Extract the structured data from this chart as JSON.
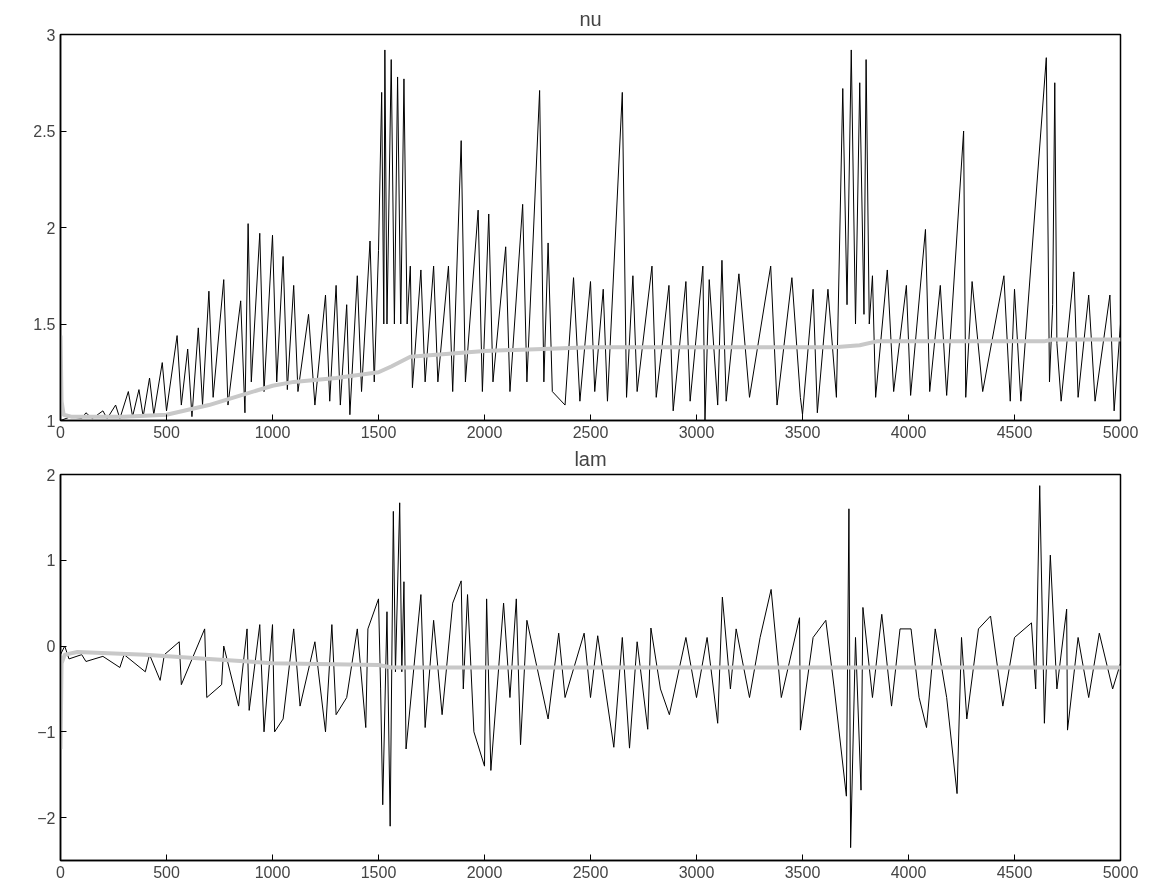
{
  "chart_data": [
    {
      "type": "line",
      "title": "nu",
      "xlim": [
        0,
        5000
      ],
      "ylim": [
        1,
        3
      ],
      "xticks": [
        0,
        500,
        1000,
        1500,
        2000,
        2500,
        3000,
        3500,
        4000,
        4500,
        5000
      ],
      "yticks": [
        1,
        1.5,
        2,
        2.5,
        3
      ],
      "series": [
        {
          "color": "#000000",
          "x": [
            0,
            50,
            100,
            120,
            150,
            200,
            220,
            260,
            280,
            320,
            340,
            370,
            390,
            420,
            440,
            480,
            500,
            550,
            570,
            600,
            620,
            650,
            670,
            700,
            720,
            770,
            790,
            850,
            870,
            885,
            900,
            940,
            960,
            1000,
            1020,
            1050,
            1070,
            1100,
            1120,
            1170,
            1200,
            1250,
            1270,
            1300,
            1320,
            1350,
            1365,
            1400,
            1420,
            1460,
            1480,
            1500,
            1515,
            1525,
            1530,
            1540,
            1560,
            1575,
            1590,
            1605,
            1620,
            1635,
            1650,
            1660,
            1700,
            1720,
            1760,
            1780,
            1830,
            1850,
            1890,
            1910,
            1970,
            1990,
            2020,
            2040,
            2100,
            2120,
            2180,
            2200,
            2260,
            2280,
            2300,
            2320,
            2380,
            2420,
            2450,
            2500,
            2520,
            2560,
            2580,
            2650,
            2670,
            2700,
            2720,
            2790,
            2810,
            2870,
            2890,
            2950,
            2970,
            3030,
            3040,
            3060,
            3100,
            3120,
            3140,
            3200,
            3250,
            3350,
            3380,
            3450,
            3490,
            3500,
            3550,
            3570,
            3620,
            3660,
            3690,
            3710,
            3730,
            3750,
            3770,
            3790,
            3800,
            3815,
            3830,
            3845,
            3900,
            3930,
            3990,
            4010,
            4080,
            4100,
            4150,
            4180,
            4260,
            4270,
            4300,
            4350,
            4450,
            4480,
            4500,
            4530,
            4650,
            4665,
            4680,
            4690,
            4700,
            4720,
            4780,
            4800,
            4850,
            4880,
            4950,
            4970,
            5000
          ],
          "values": [
            1.0,
            1.02,
            1.01,
            1.04,
            1.01,
            1.05,
            1.01,
            1.08,
            1.01,
            1.15,
            1.02,
            1.16,
            1.02,
            1.22,
            1.03,
            1.3,
            1.05,
            1.44,
            1.08,
            1.37,
            1.02,
            1.48,
            1.08,
            1.67,
            1.12,
            1.73,
            1.08,
            1.62,
            1.04,
            2.02,
            1.2,
            1.97,
            1.15,
            1.96,
            1.2,
            1.85,
            1.16,
            1.7,
            1.15,
            1.55,
            1.08,
            1.65,
            1.1,
            1.7,
            1.08,
            1.6,
            1.03,
            1.75,
            1.15,
            1.93,
            1.2,
            1.88,
            2.7,
            1.5,
            2.92,
            1.5,
            2.87,
            1.5,
            2.78,
            1.5,
            2.77,
            1.5,
            1.8,
            1.17,
            1.78,
            1.2,
            1.8,
            1.2,
            1.8,
            1.15,
            2.45,
            1.2,
            2.09,
            1.15,
            2.07,
            1.2,
            1.9,
            1.15,
            2.12,
            1.2,
            2.71,
            1.2,
            1.92,
            1.15,
            1.08,
            1.74,
            1.1,
            1.72,
            1.15,
            1.68,
            1.1,
            2.7,
            1.12,
            1.75,
            1.15,
            1.8,
            1.12,
            1.7,
            1.05,
            1.72,
            1.1,
            1.8,
            1.0,
            1.73,
            1.08,
            1.83,
            1.1,
            1.76,
            1.12,
            1.8,
            1.08,
            1.74,
            1.12,
            1.03,
            1.68,
            1.04,
            1.68,
            1.12,
            2.72,
            1.6,
            2.92,
            1.5,
            2.75,
            1.55,
            2.87,
            1.5,
            1.75,
            1.12,
            1.78,
            1.15,
            1.7,
            1.13,
            1.99,
            1.15,
            1.7,
            1.13,
            2.5,
            1.12,
            1.72,
            1.15,
            1.75,
            1.1,
            1.68,
            1.1,
            2.88,
            1.2,
            1.6,
            2.75,
            1.4,
            1.1,
            1.77,
            1.12,
            1.65,
            1.1,
            1.65,
            1.05,
            1.5
          ]
        },
        {
          "color": "#c8c8c8",
          "x": [
            0,
            5,
            15,
            50,
            300,
            500,
            700,
            850,
            1000,
            1100,
            1300,
            1500,
            1560,
            1650,
            2000,
            2500,
            3000,
            3650,
            3770,
            3850,
            4500,
            4640,
            4680,
            5000
          ],
          "values": [
            1.44,
            1.1,
            1.03,
            1.02,
            1.02,
            1.03,
            1.08,
            1.13,
            1.18,
            1.2,
            1.22,
            1.25,
            1.28,
            1.33,
            1.36,
            1.38,
            1.38,
            1.38,
            1.39,
            1.41,
            1.41,
            1.41,
            1.42,
            1.42
          ]
        }
      ]
    },
    {
      "type": "line",
      "title": "lam",
      "xlim": [
        0,
        5000
      ],
      "ylim": [
        -2.5,
        2
      ],
      "xticks": [
        0,
        500,
        1000,
        1500,
        2000,
        2500,
        3000,
        3500,
        4000,
        4500,
        5000
      ],
      "yticks": [
        -2,
        -1,
        0,
        1,
        2
      ],
      "series": [
        {
          "color": "#000000",
          "x": [
            0,
            20,
            40,
            100,
            120,
            200,
            280,
            300,
            400,
            420,
            470,
            490,
            560,
            570,
            680,
            690,
            760,
            770,
            840,
            880,
            890,
            940,
            960,
            1000,
            1010,
            1050,
            1100,
            1130,
            1200,
            1250,
            1280,
            1300,
            1350,
            1400,
            1440,
            1450,
            1500,
            1510,
            1520,
            1540,
            1555,
            1570,
            1580,
            1600,
            1610,
            1620,
            1630,
            1700,
            1720,
            1760,
            1800,
            1850,
            1890,
            1900,
            1920,
            1950,
            2000,
            2010,
            2030,
            2090,
            2120,
            2150,
            2170,
            2200,
            2300,
            2350,
            2380,
            2470,
            2500,
            2534,
            2570,
            2610,
            2650,
            2684,
            2720,
            2770,
            2785,
            2830,
            2872,
            2950,
            3000,
            3050,
            3100,
            3122,
            3160,
            3187,
            3250,
            3300,
            3352,
            3400,
            3486,
            3490,
            3550,
            3610,
            3650,
            3707,
            3719,
            3727,
            3750,
            3776,
            3785,
            3830,
            3874,
            3920,
            3960,
            4012,
            4050,
            4085,
            4126,
            4180,
            4229,
            4250,
            4275,
            4330,
            4387,
            4445,
            4500,
            4580,
            4600,
            4619,
            4641,
            4669,
            4700,
            4746,
            4750,
            4800,
            4850,
            4900,
            4963,
            5000
          ],
          "values": [
            -0.1,
            0.0,
            -0.15,
            -0.1,
            -0.18,
            -0.12,
            -0.25,
            -0.1,
            -0.3,
            -0.1,
            -0.4,
            -0.1,
            0.05,
            -0.45,
            0.2,
            -0.6,
            -0.45,
            0.0,
            -0.7,
            0.2,
            -0.75,
            0.25,
            -1.0,
            0.25,
            -1.0,
            -0.85,
            0.2,
            -0.7,
            0.05,
            -1.0,
            0.25,
            -0.8,
            -0.6,
            0.2,
            -0.95,
            0.2,
            0.55,
            -0.5,
            -1.85,
            0.4,
            -2.1,
            1.57,
            -0.3,
            1.67,
            -0.3,
            0.75,
            -1.2,
            0.6,
            -0.95,
            0.3,
            -0.8,
            0.5,
            0.76,
            -0.5,
            0.6,
            -1.0,
            -1.4,
            0.55,
            -1.45,
            0.5,
            -0.6,
            0.55,
            -1.15,
            0.3,
            -0.85,
            0.15,
            -0.6,
            0.15,
            -0.6,
            0.12,
            -0.5,
            -1.18,
            0.1,
            -1.19,
            0.05,
            -0.97,
            0.21,
            -0.5,
            -0.8,
            0.1,
            -0.6,
            0.1,
            -0.9,
            0.57,
            -0.5,
            0.2,
            -0.6,
            0.1,
            0.66,
            -0.6,
            0.33,
            -0.98,
            0.1,
            0.3,
            -0.5,
            -1.75,
            1.6,
            -2.35,
            0.1,
            -1.68,
            0.45,
            -0.6,
            0.37,
            -0.7,
            0.2,
            0.2,
            -0.6,
            -0.95,
            0.2,
            -0.6,
            -1.72,
            0.1,
            -0.85,
            0.2,
            0.35,
            -0.7,
            0.1,
            0.27,
            -0.5,
            1.87,
            -0.9,
            1.06,
            -0.5,
            0.43,
            -0.98,
            0.1,
            -0.6,
            0.15,
            -0.5,
            -0.2
          ]
        },
        {
          "color": "#c8c8c8",
          "x": [
            0,
            5,
            20,
            80,
            400,
            700,
            1000,
            1500,
            1560,
            2500,
            5000
          ],
          "values": [
            -1.2,
            -0.2,
            -0.1,
            -0.07,
            -0.1,
            -0.15,
            -0.2,
            -0.22,
            -0.25,
            -0.25,
            -0.25
          ]
        }
      ]
    }
  ]
}
